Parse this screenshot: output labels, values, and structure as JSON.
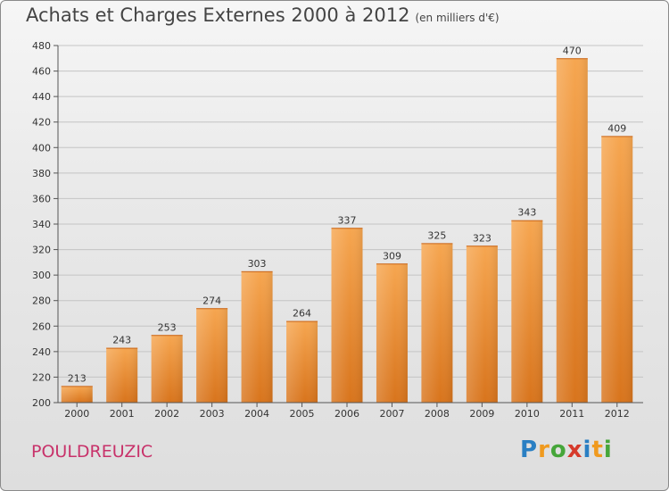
{
  "header": {
    "title": "Achats et Charges Externes 2000 à 2012",
    "subtitle": "(en milliers d'€)"
  },
  "footer": {
    "commune": "POULDREUZIC",
    "logo_text": "Proxiti"
  },
  "colors": {
    "bar_top": "#f6a650",
    "bar_bottom": "#d8741c",
    "commune": "#c8326a",
    "logo_p": "#2a7fc3",
    "logo_r": "#f09a1e",
    "logo_o": "#46a63a",
    "logo_x": "#d63a2b",
    "logo_i": "#2a7fc3",
    "logo_t": "#f09a1e",
    "logo_i2": "#46a63a"
  },
  "chart_data": {
    "type": "bar",
    "title": "Achats et Charges Externes 2000 à 2012",
    "unit": "(en milliers d'€)",
    "categories": [
      "2000",
      "2001",
      "2002",
      "2003",
      "2004",
      "2005",
      "2006",
      "2007",
      "2008",
      "2009",
      "2010",
      "2011",
      "2012"
    ],
    "values": [
      213,
      243,
      253,
      274,
      303,
      264,
      337,
      309,
      325,
      323,
      343,
      470,
      409
    ],
    "ylim": [
      200,
      480
    ],
    "yticks": [
      200,
      220,
      240,
      260,
      280,
      300,
      320,
      340,
      360,
      380,
      400,
      420,
      440,
      460,
      480
    ],
    "grid": true,
    "xlabel": "",
    "ylabel": ""
  }
}
